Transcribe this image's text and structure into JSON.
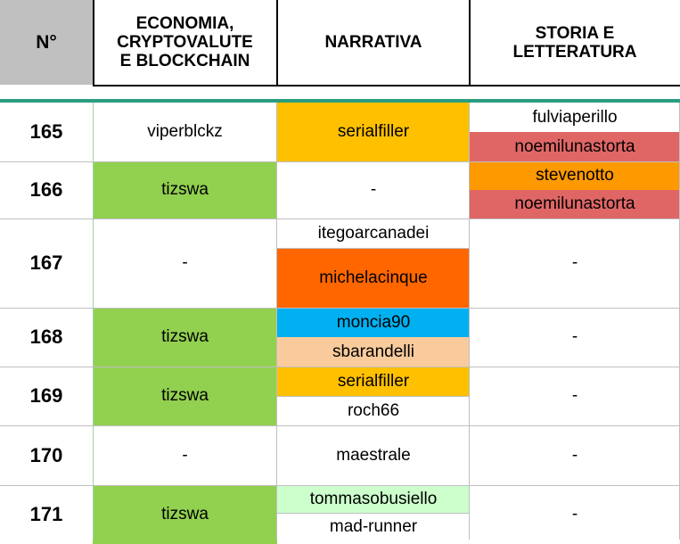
{
  "header": {
    "col_no": "N°",
    "col1": "ECONOMIA,\nCRYPTOVALUTE\nE BLOCKCHAIN",
    "col2": "NARRATIVA",
    "col3": "STORIA E\nLETTERATURA"
  },
  "rows": [
    {
      "no": "165",
      "eco": "viperblckz",
      "narr": [
        "serialfiller"
      ],
      "storia": [
        "fulviaperillo",
        "noemilunastorta"
      ]
    },
    {
      "no": "166",
      "eco": "tizswa",
      "narr": [
        "-"
      ],
      "storia": [
        "stevenotto",
        "noemilunastorta"
      ]
    },
    {
      "no": "167",
      "eco": "-",
      "narr": [
        "itegoarcanadei",
        "michelacinque"
      ],
      "storia": [
        "-"
      ]
    },
    {
      "no": "168",
      "eco": "tizswa",
      "narr": [
        "moncia90",
        "sbarandelli"
      ],
      "storia": [
        "-"
      ]
    },
    {
      "no": "169",
      "eco": "tizswa",
      "narr": [
        "serialfiller",
        "roch66"
      ],
      "storia": [
        "-"
      ]
    },
    {
      "no": "170",
      "eco": "-",
      "narr": [
        "maestrale"
      ],
      "storia": [
        "-"
      ]
    },
    {
      "no": "171",
      "eco": "tizswa",
      "narr": [
        "tommasobusiello",
        "mad-runner"
      ],
      "storia": [
        "-"
      ]
    }
  ],
  "colors": {
    "header_no_bg": "#c0c0c0",
    "accent_rule": "#2a9d80",
    "green": "#92d050",
    "yellow": "#ffc000",
    "red": "#e06666",
    "orange": "#ff9900",
    "dark_orange": "#ff6600",
    "blue": "#00b0f0",
    "peach": "#f9cb9c",
    "light_green": "#ccffcc"
  }
}
